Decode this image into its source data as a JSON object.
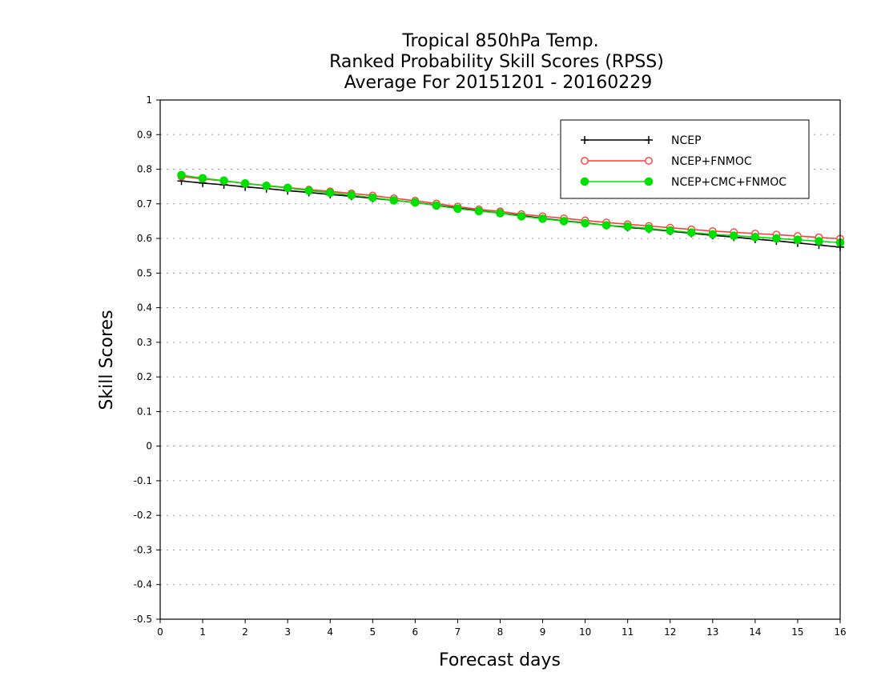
{
  "chart_data": {
    "type": "line",
    "title": "Tropical 850hPa Temp.",
    "subtitle": "Ranked Probability Skill Scores (RPSS)",
    "subtitle2": "Average For 20151201 - 20160229",
    "xlabel": "Forecast days",
    "ylabel": "Skill Scores",
    "xlim": [
      0,
      16
    ],
    "ylim": [
      -0.5,
      1
    ],
    "xticks": [
      0,
      1,
      2,
      3,
      4,
      5,
      6,
      7,
      8,
      9,
      10,
      11,
      12,
      13,
      14,
      15,
      16
    ],
    "xtick_labels": [
      "0",
      "1",
      "2",
      "3",
      "4",
      "5",
      "6",
      "7",
      "8",
      "9",
      "10",
      "11",
      "12",
      "13",
      "14",
      "15",
      "16"
    ],
    "yticks": [
      -0.5,
      -0.4,
      -0.3,
      -0.2,
      -0.1,
      0,
      0.1,
      0.2,
      0.3,
      0.4,
      0.5,
      0.6,
      0.7,
      0.8,
      0.9,
      1
    ],
    "ytick_labels": [
      "-0.5",
      "-0.4",
      "-0.3",
      "-0.2",
      "-0.1",
      "0",
      "0.1",
      "0.2",
      "0.3",
      "0.4",
      "0.5",
      "0.6",
      "0.7",
      "0.8",
      "0.9",
      "1"
    ],
    "grid": "horizontal-dotted",
    "legend_position": "top-right",
    "x": [
      0.5,
      1,
      1.5,
      2,
      2.5,
      3,
      3.5,
      4,
      4.5,
      5,
      5.5,
      6,
      6.5,
      7,
      7.5,
      8,
      8.5,
      9,
      9.5,
      10,
      10.5,
      11,
      11.5,
      12,
      12.5,
      13,
      13.5,
      14,
      14.5,
      15,
      15.5,
      16
    ],
    "series": [
      {
        "name": "NCEP",
        "color": "#000000",
        "marker": "plus",
        "values": [
          0.766,
          0.76,
          0.755,
          0.749,
          0.744,
          0.738,
          0.733,
          0.727,
          0.722,
          0.716,
          0.71,
          0.704,
          0.696,
          0.688,
          0.68,
          0.673,
          0.666,
          0.658,
          0.651,
          0.645,
          0.638,
          0.632,
          0.627,
          0.621,
          0.615,
          0.609,
          0.604,
          0.598,
          0.593,
          0.587,
          0.581,
          0.575
        ]
      },
      {
        "name": "NCEP+FNMOC",
        "color": "#ff3b3b",
        "marker": "open-circle",
        "values": [
          0.779,
          0.772,
          0.766,
          0.759,
          0.753,
          0.747,
          0.741,
          0.736,
          0.73,
          0.724,
          0.716,
          0.709,
          0.701,
          0.692,
          0.684,
          0.678,
          0.67,
          0.664,
          0.658,
          0.652,
          0.646,
          0.641,
          0.636,
          0.631,
          0.626,
          0.621,
          0.618,
          0.614,
          0.611,
          0.607,
          0.603,
          0.599
        ]
      },
      {
        "name": "NCEP+CMC+FNMOC",
        "color": "#00e000",
        "marker": "filled-circle",
        "values": [
          0.783,
          0.774,
          0.767,
          0.759,
          0.752,
          0.746,
          0.738,
          0.732,
          0.725,
          0.718,
          0.71,
          0.704,
          0.695,
          0.686,
          0.679,
          0.673,
          0.664,
          0.657,
          0.65,
          0.644,
          0.638,
          0.634,
          0.629,
          0.623,
          0.617,
          0.612,
          0.608,
          0.604,
          0.6,
          0.596,
          0.592,
          0.588
        ]
      }
    ]
  }
}
